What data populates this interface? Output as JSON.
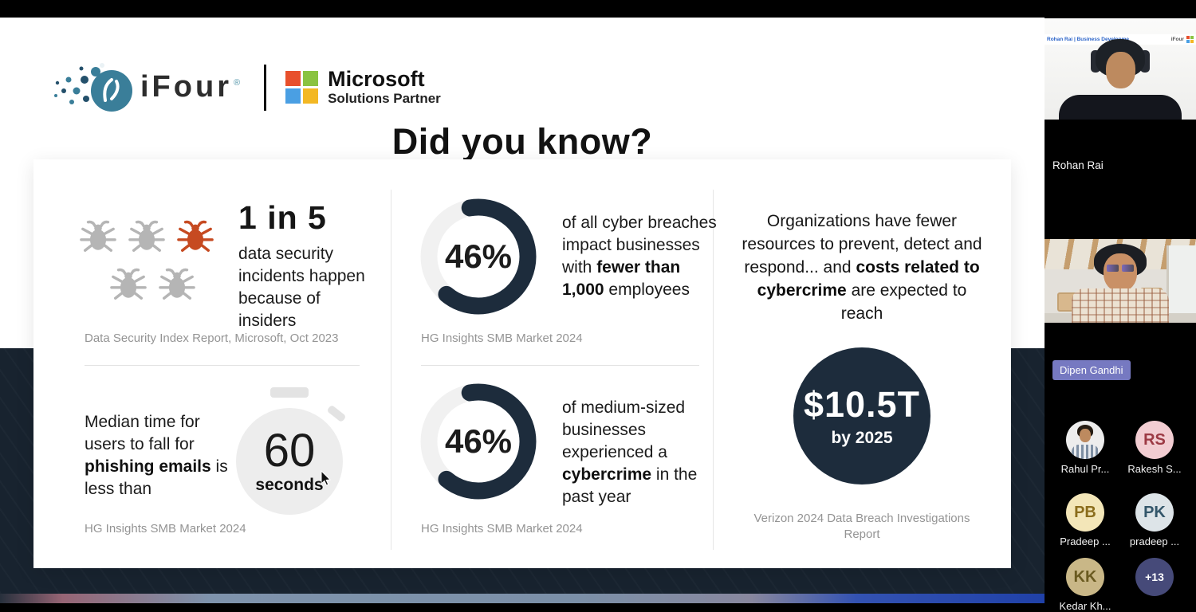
{
  "slide": {
    "header": {
      "ifour_text": "iFour",
      "ifour_reg": "®",
      "partner_title": "Microsoft",
      "partner_subtitle": "Solutions Partner"
    },
    "title": "Did you know?",
    "stats": {
      "insiders": {
        "headline": "1 in 5",
        "desc": "data security incidents happen because of insiders",
        "source": "Data Security Index Report, Microsoft, Oct 2023",
        "pictogram": {
          "total_bugs": 5,
          "highlight_index": 2,
          "bug_color": "#b5b5b5",
          "highlight_color": "#c64a21"
        }
      },
      "phishing": {
        "prefix": "Median time for users to fall for ",
        "bold": "phishing emails",
        "suffix": " is less than",
        "value": "60",
        "unit": "seconds",
        "source": "HG Insights SMB Market 2024"
      },
      "breaches_small_business": {
        "percent": "46%",
        "prefix": "of all cyber breaches impact businesses with ",
        "bold": "fewer than 1,000",
        "suffix": " employees",
        "source": "HG Insights SMB Market 2024"
      },
      "cybercrime_medium_business": {
        "percent": "46%",
        "prefix": "of medium-sized businesses experienced a ",
        "bold": "cybercrime",
        "suffix": " in the past year",
        "source": "HG Insights SMB Market 2024"
      },
      "cybercrime_costs": {
        "prefix": "Organizations have fewer resources to prevent, detect and respond... and ",
        "bold": "costs related to cybercrime",
        "suffix": " are expected to reach",
        "amount": "$10.5T",
        "when": "by 2025",
        "source": "Verizon 2024 Data Breach Investigations Report"
      }
    },
    "colors": {
      "accent_navy": "#1d2c3c",
      "ms_red": "#e8502c",
      "ms_green": "#8bc341",
      "ms_blue": "#4a9fe3",
      "ms_yellow": "#f3b824",
      "ifour_teal": "#3a7e99"
    }
  },
  "sidebar": {
    "speaker_video": {
      "banner_text": "Rohan Rai | Business Developme",
      "banner_brand": "iFour",
      "name_label": "Rohan Rai"
    },
    "second_video": {
      "name_label": "Dipen Gandhi"
    },
    "participants": [
      {
        "label": "Rahul Pr...",
        "type": "photo",
        "initials": "",
        "bg": "#ededed",
        "fg": "#333333"
      },
      {
        "label": "Rakesh S...",
        "type": "initials",
        "initials": "RS",
        "bg": "#f2cdd2",
        "fg": "#9c3a44"
      },
      {
        "label": "Pradeep ...",
        "type": "initials",
        "initials": "PB",
        "bg": "#f3e6b8",
        "fg": "#8b6d1c"
      },
      {
        "label": "pradeep ...",
        "type": "initials",
        "initials": "PK",
        "bg": "#dde4e8",
        "fg": "#33566a"
      },
      {
        "label": "Kedar Kh...",
        "type": "initials",
        "initials": "KK",
        "bg": "#c9b787",
        "fg": "#6a5a20"
      },
      {
        "label": "",
        "type": "initials",
        "initials": "+13",
        "bg": "#464a79",
        "fg": "#ffffff",
        "overflow": true
      }
    ]
  }
}
